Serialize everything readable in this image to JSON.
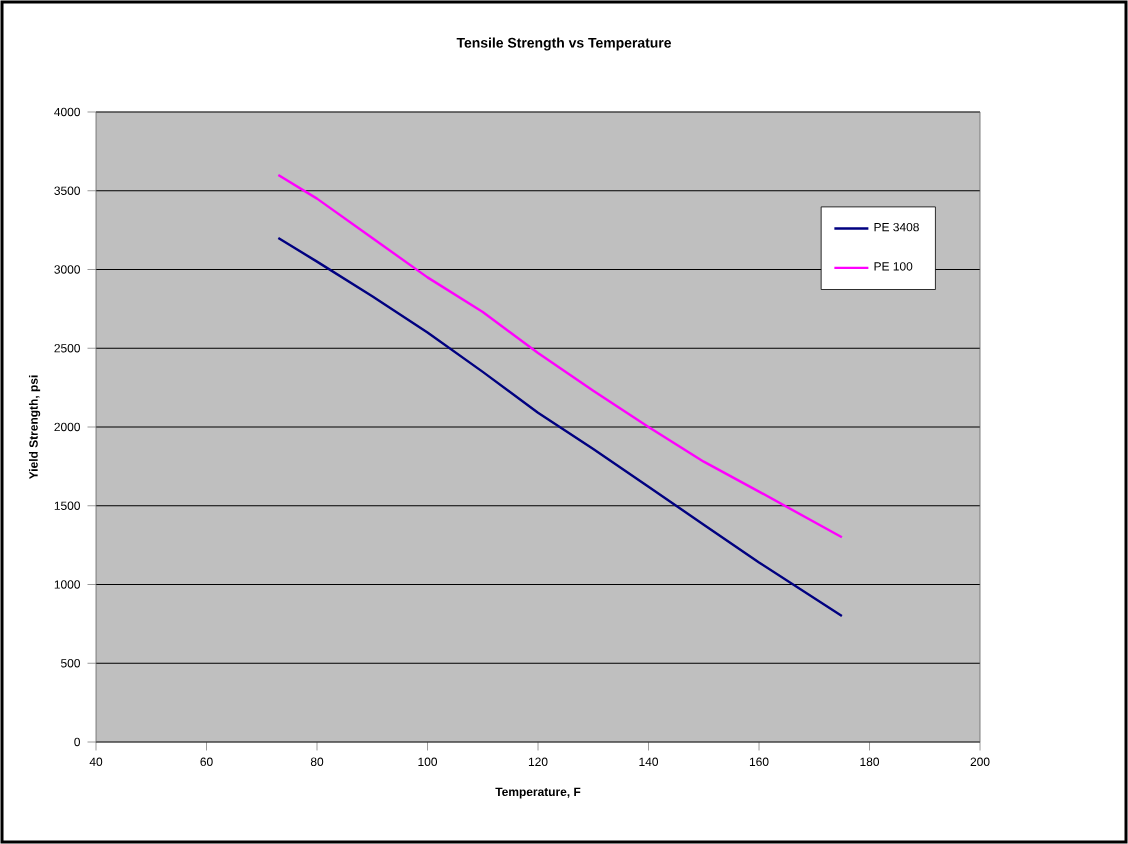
{
  "chart_data": {
    "type": "line",
    "title": "Tensile Strength vs Temperature",
    "xlabel": "Temperature, F",
    "ylabel": "Yield Strength, psi",
    "xlim": [
      40,
      200
    ],
    "xticks": [
      40,
      60,
      80,
      100,
      120,
      140,
      160,
      180,
      200
    ],
    "ylim": [
      0,
      4000
    ],
    "yticks": [
      0,
      500,
      1000,
      1500,
      2000,
      2500,
      3000,
      3500,
      4000
    ],
    "grid": "y",
    "legend": "top right",
    "line_style": "solid",
    "marker": "none",
    "series": [
      {
        "name": "PE 3408",
        "color": "#000080",
        "x": [
          73,
          80,
          90,
          100,
          110,
          120,
          130,
          140,
          150,
          160,
          175
        ],
        "values": [
          3200,
          3050,
          2830,
          2600,
          2350,
          2090,
          1860,
          1620,
          1380,
          1140,
          800
        ]
      },
      {
        "name": "PE 100",
        "color": "#ff00ff",
        "x": [
          73,
          80,
          90,
          100,
          110,
          120,
          130,
          140,
          150,
          160,
          175
        ],
        "values": [
          3600,
          3450,
          3200,
          2950,
          2730,
          2470,
          2230,
          2000,
          1780,
          1590,
          1300
        ]
      }
    ]
  }
}
